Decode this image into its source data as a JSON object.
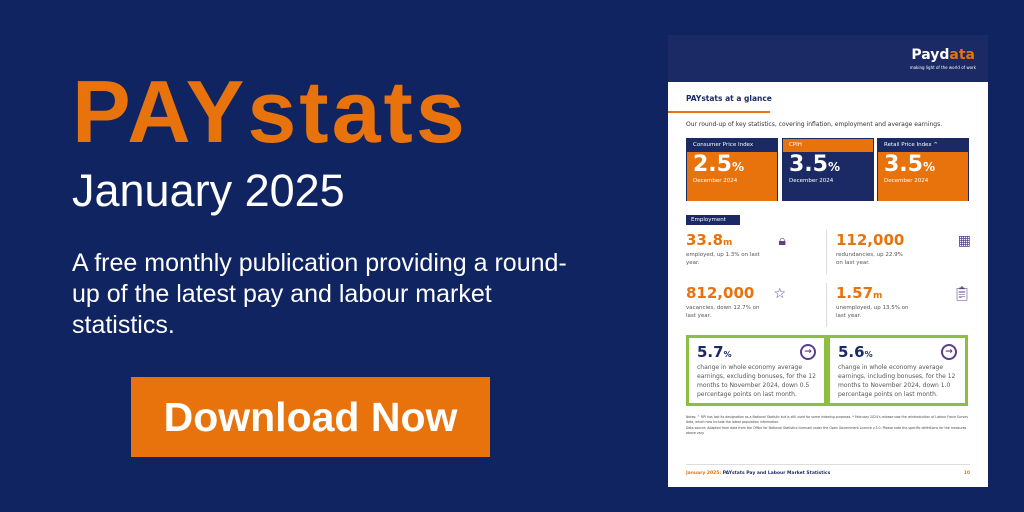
{
  "hero": {
    "brand": "PAYstats",
    "date": "January 2025",
    "description": "A free monthly publication providing a round-up of the latest pay and labour market statistics.",
    "download_label": "Download Now"
  },
  "colors": {
    "navy": "#0f2461",
    "orange": "#e8730c",
    "green": "#8cbf3f",
    "purple": "#5a3f8a"
  },
  "doc": {
    "logo_a": "Payd",
    "logo_b": "ata",
    "tagline": "making light of the world of work",
    "title": "PAYstats at a glance",
    "intro": "Our round-up of key statistics, covering inflation, employment and average earnings.",
    "prices": [
      {
        "label": "Consumer Price Index",
        "value": "2.5",
        "unit": "%",
        "date": "December 2024"
      },
      {
        "label": "CPIH",
        "value": "3.5",
        "unit": "%",
        "date": "December 2024"
      },
      {
        "label": "Retail Price Index ^",
        "value": "3.5",
        "unit": "%",
        "date": "December 2024"
      }
    ],
    "employment_label": "Employment",
    "stats": [
      {
        "value": "33.8",
        "unit": "m",
        "text": "employed, up 1.3% on last year.",
        "icon": "lock-icon"
      },
      {
        "value": "112,000",
        "unit": "",
        "text": "redundancies, up 22.9% on last year.",
        "icon": "barrier-icon"
      },
      {
        "value": "812,000",
        "unit": "",
        "text": "vacancies, down 12.7% on last year.",
        "icon": "star-icon"
      },
      {
        "value": "1.57",
        "unit": "m",
        "text": "unemployed, up 13.5% on last year.",
        "icon": "clipboard-icon"
      }
    ],
    "earnings": [
      {
        "value": "5.7",
        "unit": "%",
        "text": "change in whole economy average earnings, excluding bonuses, for the 12 months to November 2024, down 0.5 percentage points on last month."
      },
      {
        "value": "5.6",
        "unit": "%",
        "text": "change in whole economy average earnings, including bonuses, for the 12 months to November 2024, down 1.0 percentage points on last month."
      }
    ],
    "notes": "Notes: ^ RPI has lost its designation as a National Statistic but is still used for some indexing purposes. * February 2024's release saw the reintroduction of Labour Force Survey data, which now include the latest population information.",
    "source": "Data source: Adapted from data from the Office for National Statistics licensed under the Open Government Licence v.3.0. Please note the specific definitions for the measures above vary.",
    "footer_date": "January 2025:",
    "footer_title": "PAYstats Pay and Labour Market Statistics",
    "page": "10"
  }
}
